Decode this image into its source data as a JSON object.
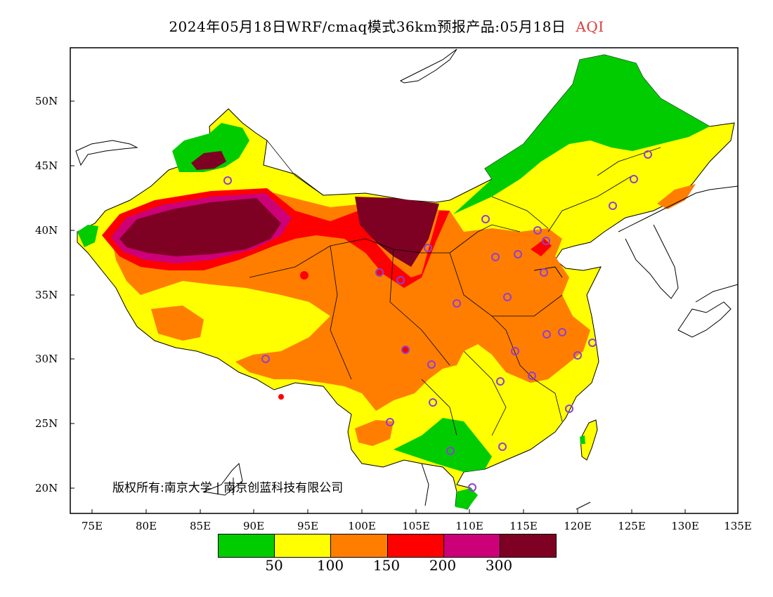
{
  "title": {
    "prefix": "2024年05月18日WRF/cmaq模式36km预报产品:05月18日",
    "variable": "AQI"
  },
  "axes": {
    "lat_labels": [
      "50N",
      "45N",
      "40N",
      "35N",
      "30N",
      "25N",
      "20N"
    ],
    "lon_labels": [
      "75E",
      "80E",
      "85E",
      "90E",
      "95E",
      "100E",
      "105E",
      "110E",
      "115E",
      "120E",
      "125E",
      "130E",
      "135E"
    ]
  },
  "copyright": "版权所有:南京大学 | 南京创蓝科技有限公司",
  "legend": {
    "colors": [
      "#00cc00",
      "#ffff00",
      "#ff7e00",
      "#ff0000",
      "#cc0077",
      "#7e0023"
    ],
    "labels": [
      "50",
      "100",
      "150",
      "200",
      "300"
    ]
  },
  "map": {
    "extent": {
      "lon_min": 73,
      "lon_max": 135,
      "lat_min": 18,
      "lat_max": 54
    },
    "station_color": "#8e3fd6"
  }
}
